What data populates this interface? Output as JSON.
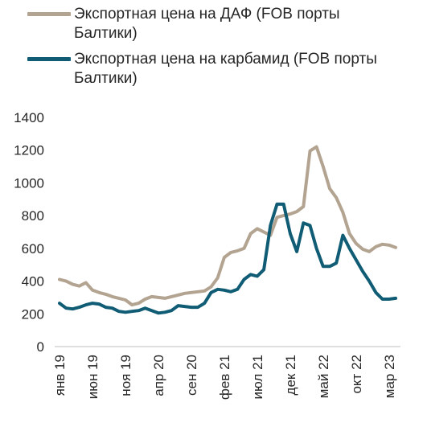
{
  "chart_data": {
    "type": "line",
    "title": "",
    "xlabel": "",
    "ylabel": "",
    "ylim": [
      0,
      1400
    ],
    "yticks": [
      0,
      200,
      400,
      600,
      800,
      1000,
      1200,
      1400
    ],
    "grid": false,
    "legend_position": "top",
    "x_tick_labels": [
      "янв 19",
      "июн 19",
      "ноя 19",
      "апр 20",
      "сен 20",
      "фев 21",
      "июл 21",
      "дек 21",
      "май 22",
      "окт 22",
      "мар 23"
    ],
    "x_tick_index": [
      0,
      5,
      10,
      15,
      20,
      25,
      30,
      35,
      40,
      45,
      50
    ],
    "series": [
      {
        "name": "Экспортная цена на ДАФ (FOB порты Балтики)",
        "color": "#b3a391",
        "values": [
          410,
          400,
          380,
          370,
          390,
          345,
          330,
          320,
          305,
          295,
          285,
          255,
          265,
          290,
          305,
          300,
          295,
          305,
          315,
          325,
          330,
          335,
          340,
          365,
          420,
          545,
          575,
          585,
          600,
          690,
          720,
          700,
          680,
          790,
          800,
          810,
          825,
          855,
          1195,
          1220,
          1100,
          965,
          910,
          820,
          690,
          630,
          595,
          580,
          610,
          625,
          620,
          605
        ]
      },
      {
        "name": "Экспортная цена на карбамид (FOB порты Балтики)",
        "color": "#0f5c74",
        "values": [
          265,
          235,
          230,
          240,
          255,
          265,
          260,
          240,
          235,
          215,
          210,
          215,
          220,
          235,
          220,
          205,
          210,
          220,
          250,
          245,
          240,
          240,
          265,
          330,
          350,
          345,
          335,
          350,
          410,
          440,
          430,
          470,
          740,
          870,
          870,
          690,
          580,
          755,
          740,
          600,
          490,
          490,
          510,
          680,
          600,
          530,
          460,
          400,
          330,
          290,
          290,
          295
        ]
      }
    ]
  }
}
